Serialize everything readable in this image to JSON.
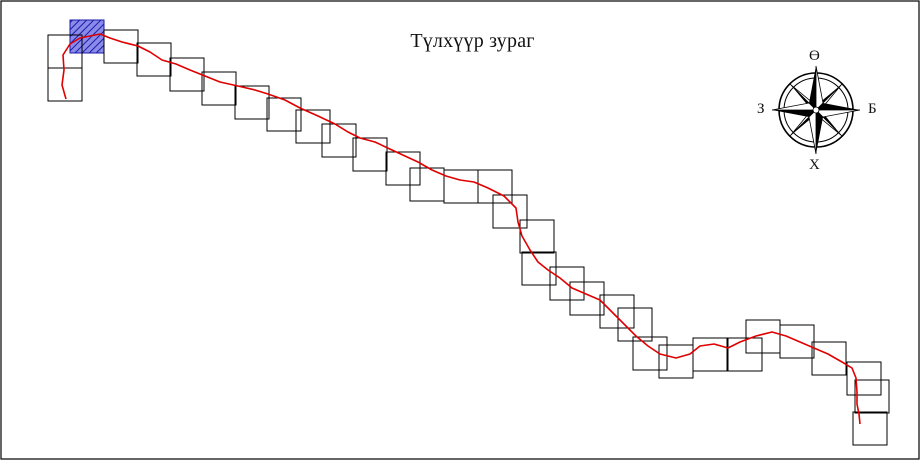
{
  "map": {
    "title": "Түлхүүр зураг",
    "colors": {
      "frame": "#000000",
      "route": "#e00000",
      "sheet_outline": "#000000",
      "highlight_fill": "#8a8ae8",
      "highlight_hatch": "#1a1aa8"
    }
  },
  "compass": {
    "north": "Ө",
    "south": "Х",
    "east": "Б",
    "west": "З",
    "icon": "compass-rose-icon"
  },
  "sheets": {
    "count": 43,
    "highlighted_index": 0
  }
}
